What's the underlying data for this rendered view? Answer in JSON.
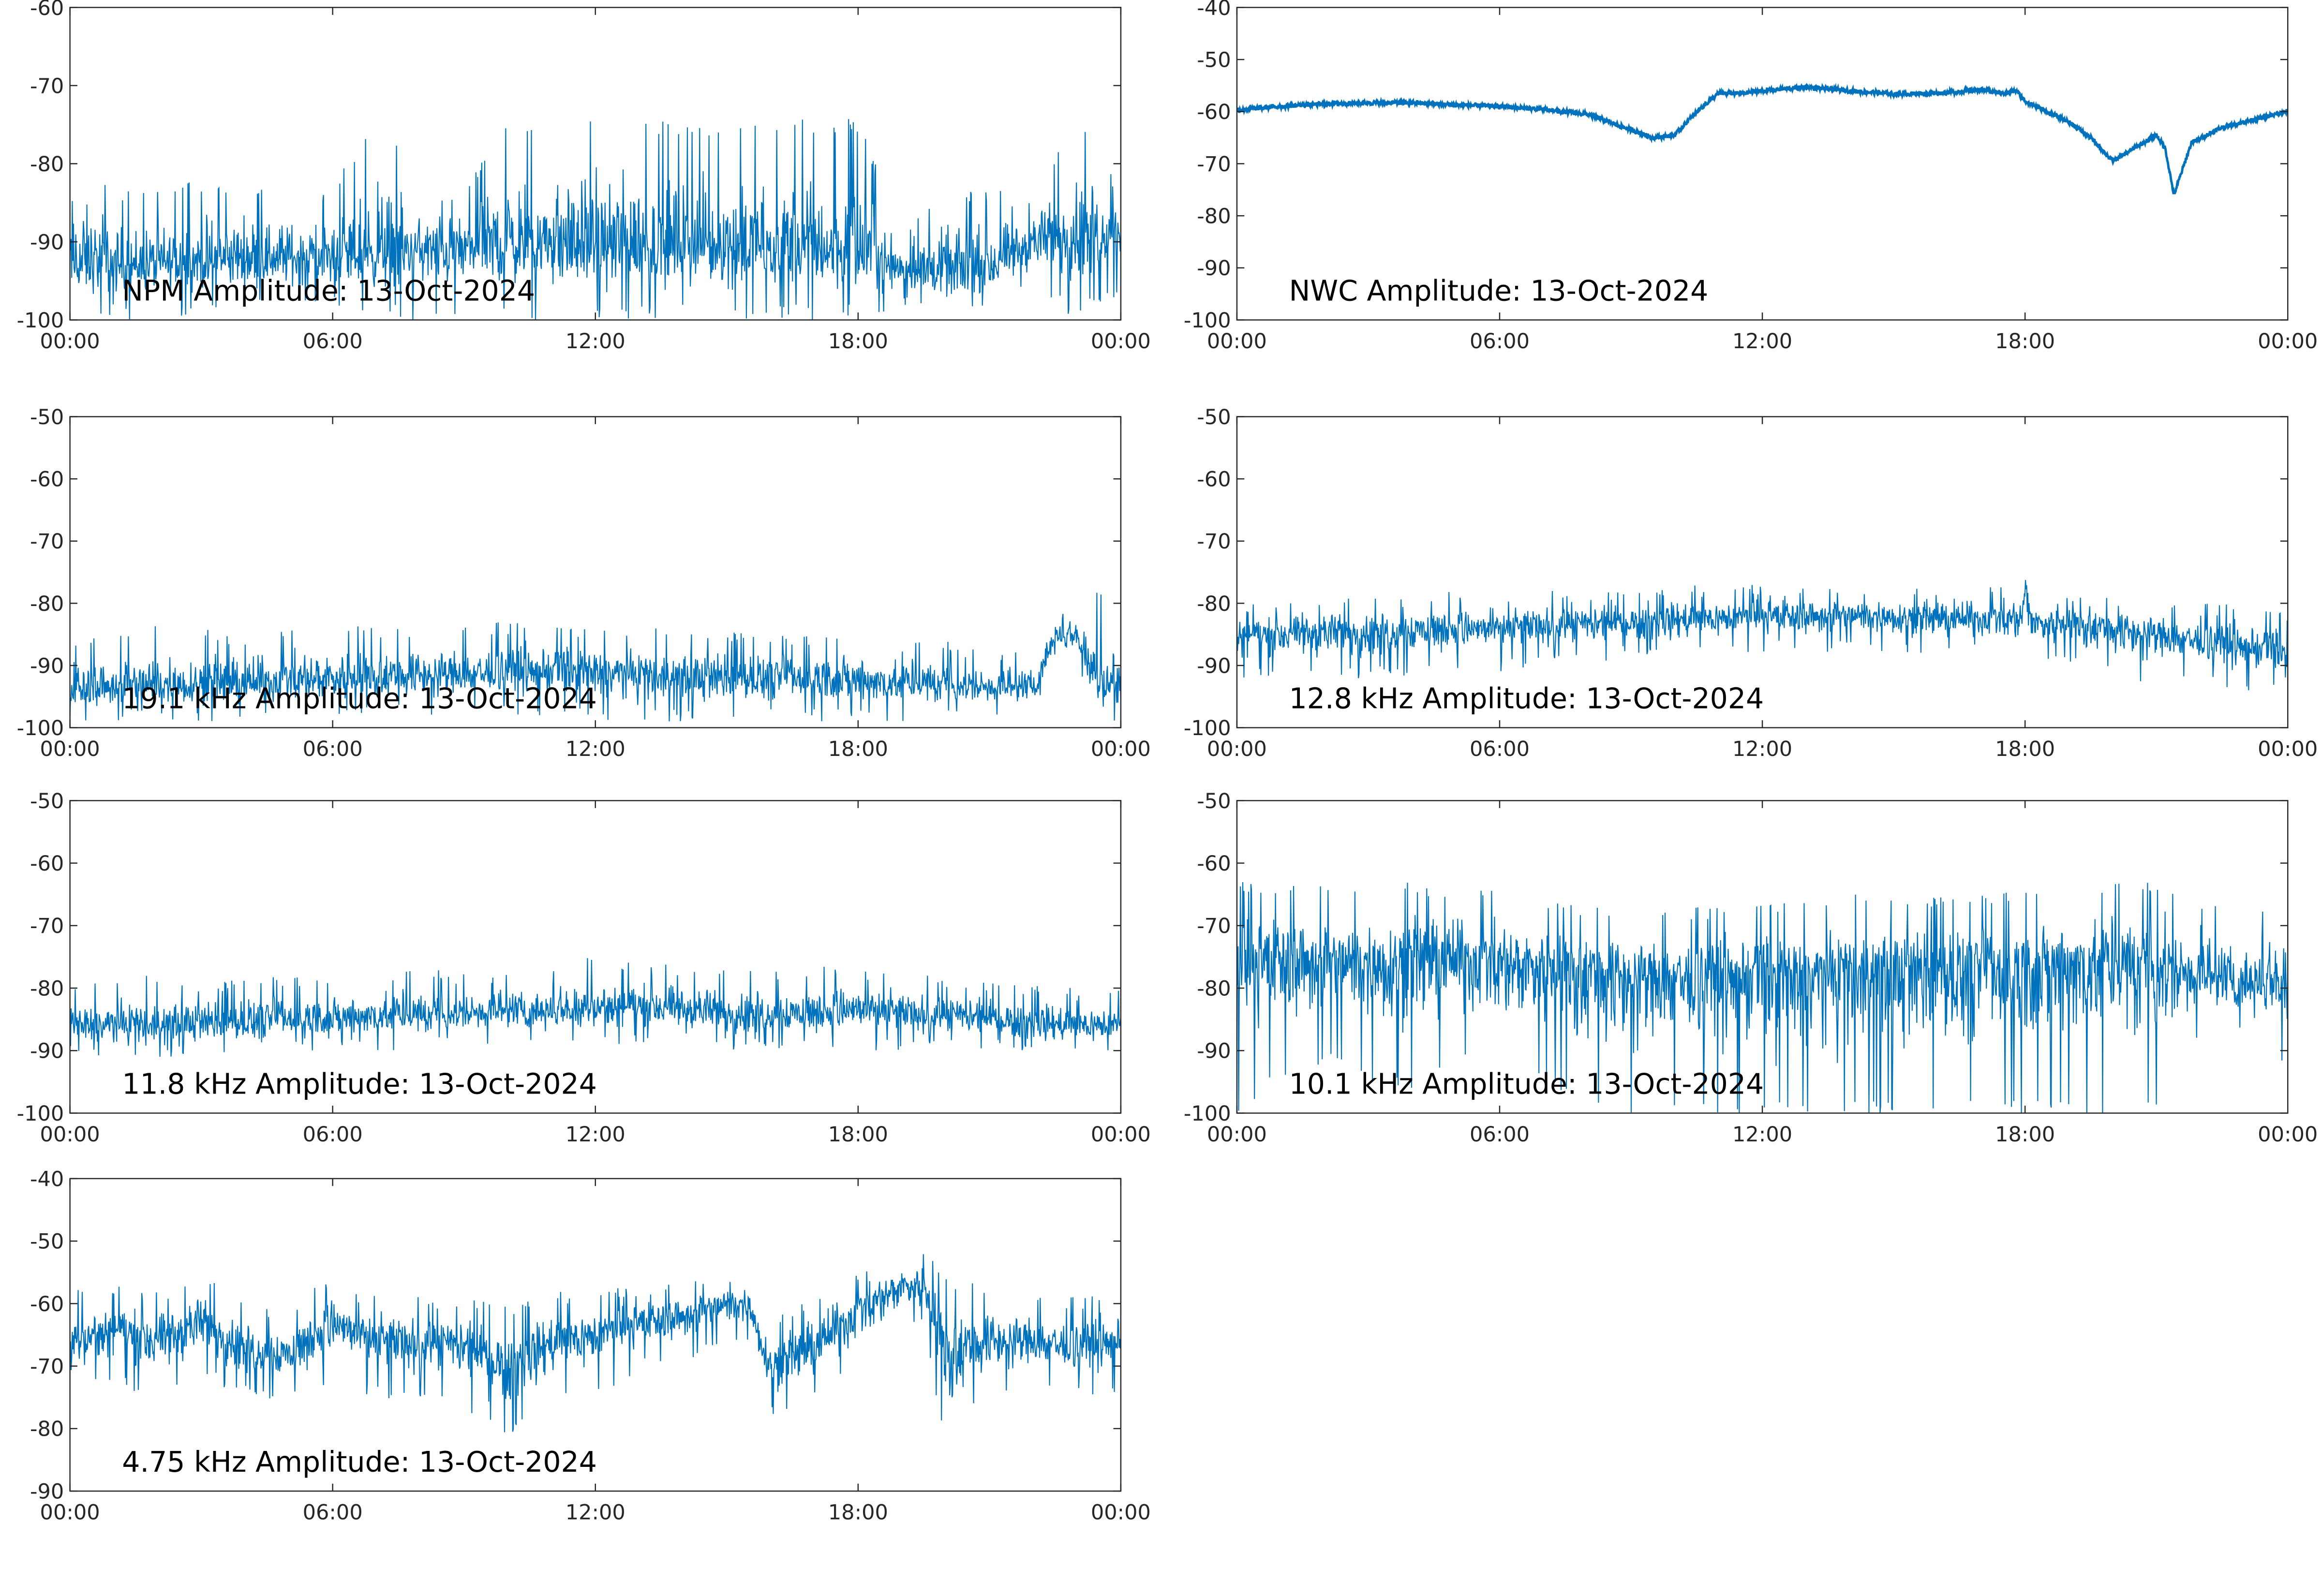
{
  "line_color": "#0072BD",
  "chart_data": [
    {
      "type": "line",
      "annotation": "NPM Amplitude: 13-Oct-2024",
      "ylim": [
        -100,
        -60
      ],
      "yticks": [
        "-100",
        "-90",
        "-80",
        "-70",
        "-60"
      ],
      "xticks": [
        "00:00",
        "06:00",
        "12:00",
        "18:00",
        "00:00"
      ],
      "xlim_hours": [
        0,
        24
      ],
      "grid": false,
      "x": [
        0,
        1,
        2,
        3,
        4,
        5,
        6,
        7,
        8,
        9,
        10,
        11,
        12,
        13,
        14,
        15,
        16,
        17,
        18,
        19,
        20,
        21,
        22,
        23,
        24
      ],
      "mean": [
        -93,
        -93,
        -93,
        -92.5,
        -92,
        -92,
        -92,
        -91.5,
        -91,
        -91,
        -90.5,
        -90.5,
        -90.5,
        -90.5,
        -90.5,
        -90.5,
        -91,
        -91,
        -91.5,
        -93,
        -94,
        -93.5,
        -90,
        -89,
        -88
      ],
      "low": [
        -100,
        -100,
        -100,
        -100,
        -99,
        -99,
        -99,
        -100,
        -100,
        -100,
        -100,
        -100,
        -100,
        -100,
        -100,
        -100,
        -100,
        -100,
        -100,
        -99,
        -100,
        -99,
        -97,
        -100,
        -97
      ],
      "high": [
        -75,
        -83,
        -83,
        -82,
        -82,
        -83,
        -83,
        -73,
        -83,
        -83,
        -74,
        -74,
        -74,
        -74,
        -75,
        -75,
        -75,
        -74,
        -74,
        -89,
        -83,
        -83,
        -84,
        -74,
        -83
      ]
    },
    {
      "type": "line",
      "annotation": "NWC Amplitude: 13-Oct-2024",
      "ylim": [
        -100,
        -40
      ],
      "yticks": [
        "-100",
        "-90",
        "-80",
        "-70",
        "-60",
        "-50",
        "-40"
      ],
      "xticks": [
        "00:00",
        "06:00",
        "12:00",
        "18:00",
        "00:00"
      ],
      "xlim_hours": [
        0,
        24
      ],
      "grid": false,
      "x": [
        0,
        1,
        2,
        3,
        4,
        5,
        6,
        7,
        8,
        9,
        9.5,
        10,
        10.5,
        11,
        11.5,
        12,
        13,
        14,
        15,
        16,
        17,
        17.5,
        17.8,
        18,
        19,
        19.5,
        20,
        20.5,
        21,
        21.2,
        21.4,
        21.8,
        22.5,
        23,
        24
      ],
      "mean": [
        -59.7,
        -59,
        -58.5,
        -58.3,
        -58.3,
        -58.7,
        -59,
        -59.6,
        -60.5,
        -63.5,
        -65,
        -64.5,
        -60,
        -56.5,
        -56.5,
        -56,
        -55.3,
        -56,
        -56.6,
        -56.5,
        -55.8,
        -56.5,
        -56,
        -58,
        -62,
        -65,
        -69.5,
        -67,
        -64.5,
        -67,
        -76,
        -66,
        -63,
        -62,
        -60
      ],
      "noise": 0.4
    },
    {
      "type": "line",
      "annotation": "19.1 kHz Amplitude: 13-Oct-2024",
      "ylim": [
        -100,
        -50
      ],
      "yticks": [
        "-100",
        "-90",
        "-80",
        "-70",
        "-60",
        "-50"
      ],
      "xticks": [
        "00:00",
        "06:00",
        "12:00",
        "18:00",
        "00:00"
      ],
      "xlim_hours": [
        0,
        24
      ],
      "grid": false,
      "x": [
        0,
        1,
        2,
        3,
        4,
        5,
        6,
        7,
        8,
        9,
        10,
        11,
        12,
        13,
        14,
        15,
        16,
        17,
        18,
        19,
        20,
        21,
        22,
        22.5,
        23,
        23.5,
        24
      ],
      "mean": [
        -94,
        -93.5,
        -93.5,
        -93,
        -93,
        -92.5,
        -92,
        -92,
        -91.5,
        -91.5,
        -91,
        -91,
        -91,
        -91.5,
        -92,
        -92,
        -92,
        -92,
        -92.5,
        -93,
        -93,
        -93.5,
        -93.5,
        -85,
        -85,
        -93,
        -93
      ],
      "low": [
        -100,
        -99,
        -99,
        -99,
        -99,
        -99,
        -99,
        -98,
        -98,
        -98,
        -98,
        -98,
        -99,
        -99,
        -99,
        -99,
        -99,
        -99,
        -99,
        -99,
        -99,
        -98,
        -98,
        -90,
        -90,
        -100,
        -100
      ],
      "high": [
        -85,
        -85,
        -82,
        -84,
        -85,
        -84,
        -83,
        -84,
        -84,
        -83,
        -83,
        -83,
        -84,
        -84,
        -84,
        -84,
        -85,
        -85,
        -84,
        -86,
        -86,
        -87,
        -87,
        -80,
        -81,
        -78,
        -80
      ]
    },
    {
      "type": "line",
      "annotation": "12.8 kHz Amplitude: 13-Oct-2024",
      "ylim": [
        -100,
        -50
      ],
      "yticks": [
        "-100",
        "-90",
        "-80",
        "-70",
        "-60",
        "-50"
      ],
      "xticks": [
        "00:00",
        "06:00",
        "12:00",
        "18:00",
        "00:00"
      ],
      "xlim_hours": [
        0,
        24
      ],
      "grid": false,
      "x": [
        0,
        1,
        2,
        3,
        4,
        5,
        6,
        7,
        8,
        9,
        10,
        11,
        12,
        13,
        14,
        15,
        16,
        17,
        17.9,
        18,
        18.2,
        19,
        20,
        21,
        22,
        23,
        24
      ],
      "mean": [
        -85,
        -85,
        -84.5,
        -84.5,
        -84,
        -84,
        -84,
        -83.5,
        -83.5,
        -83,
        -82.5,
        -82.5,
        -82,
        -82,
        -82,
        -82,
        -82.5,
        -82.5,
        -82.5,
        -78,
        -83,
        -83,
        -84,
        -85,
        -86,
        -87,
        -88
      ],
      "low": [
        -92,
        -92,
        -93,
        -92,
        -92,
        -91,
        -91,
        -90,
        -90,
        -89,
        -89,
        -88,
        -88,
        -88,
        -88,
        -88,
        -88,
        -88,
        -89,
        -88,
        -90,
        -90,
        -92,
        -93,
        -93,
        -94,
        -94
      ],
      "high": [
        -80,
        -80,
        -79,
        -79,
        -79,
        -78,
        -79,
        -78,
        -78,
        -78,
        -77,
        -77,
        -77,
        -77,
        -77,
        -77,
        -78,
        -77,
        -77,
        -72,
        -79,
        -79,
        -79,
        -79,
        -80,
        -80,
        -81
      ]
    },
    {
      "type": "line",
      "annotation": "11.8 kHz Amplitude: 13-Oct-2024",
      "ylim": [
        -100,
        -50
      ],
      "yticks": [
        "-100",
        "-90",
        "-80",
        "-70",
        "-60",
        "-50"
      ],
      "xticks": [
        "00:00",
        "06:00",
        "12:00",
        "18:00",
        "00:00"
      ],
      "xlim_hours": [
        0,
        24
      ],
      "grid": false,
      "x": [
        0,
        1,
        2,
        3,
        4,
        5,
        6,
        7,
        8,
        9,
        10,
        11,
        12,
        13,
        14,
        15,
        16,
        17,
        18,
        19,
        20,
        21,
        22,
        23,
        24
      ],
      "mean": [
        -86,
        -86,
        -86,
        -85.5,
        -85.5,
        -85,
        -85,
        -84.5,
        -84.5,
        -84,
        -83.5,
        -83.5,
        -83,
        -83,
        -83.5,
        -84,
        -84,
        -84,
        -83.5,
        -84,
        -84.5,
        -85,
        -85.5,
        -86,
        -86
      ],
      "low": [
        -91,
        -91,
        -91,
        -91,
        -91,
        -90,
        -90,
        -90,
        -90,
        -89,
        -89,
        -89,
        -89,
        -89,
        -89,
        -90,
        -90,
        -90,
        -90,
        -90,
        -90,
        -90,
        -91,
        -91,
        -91
      ],
      "high": [
        -80,
        -78,
        -78,
        -79,
        -78,
        -78,
        -78,
        -77,
        -77,
        -77,
        -77,
        -76,
        -75,
        -76,
        -76,
        -77,
        -77,
        -77,
        -75,
        -78,
        -78,
        -79,
        -79,
        -80,
        -80
      ]
    },
    {
      "type": "line",
      "annotation": "10.1 kHz Amplitude: 13-Oct-2024",
      "ylim": [
        -100,
        -50
      ],
      "yticks": [
        "-100",
        "-90",
        "-80",
        "-70",
        "-60",
        "-50"
      ],
      "xticks": [
        "00:00",
        "06:00",
        "12:00",
        "18:00",
        "00:00"
      ],
      "xlim_hours": [
        0,
        24
      ],
      "grid": false,
      "x": [
        0,
        1,
        2,
        3,
        4,
        5,
        6,
        7,
        8,
        9,
        10,
        11,
        12,
        13,
        14,
        15,
        16,
        17,
        18,
        19,
        20,
        21,
        22,
        23,
        24
      ],
      "mean": [
        -76,
        -75,
        -76,
        -76,
        -75,
        -75,
        -76,
        -76,
        -77,
        -78,
        -78,
        -78,
        -78,
        -78,
        -77,
        -77,
        -77,
        -77,
        -77,
        -76,
        -76,
        -76,
        -78,
        -79,
        -78
      ],
      "low": [
        -100,
        -95,
        -92,
        -95,
        -96,
        -92,
        -92,
        -95,
        -100,
        -100,
        -100,
        -100,
        -100,
        -100,
        -100,
        -100,
        -100,
        -100,
        -100,
        -100,
        -100,
        -100,
        -87,
        -87,
        -93
      ],
      "high": [
        -63,
        -63,
        -63,
        -63,
        -63,
        -64,
        -64,
        -66,
        -67,
        -67,
        -67,
        -67,
        -66,
        -66,
        -65,
        -65,
        -65,
        -65,
        -64,
        -63,
        -63,
        -63,
        -66,
        -66,
        -67
      ]
    },
    {
      "type": "line",
      "annotation": "4.75 kHz Amplitude: 13-Oct-2024",
      "ylim": [
        -90,
        -40
      ],
      "yticks": [
        "-90",
        "-80",
        "-70",
        "-60",
        "-50",
        "-40"
      ],
      "xticks": [
        "00:00",
        "06:00",
        "12:00",
        "18:00",
        "00:00"
      ],
      "xlim_hours": [
        0,
        24
      ],
      "grid": false,
      "x": [
        0,
        1,
        2,
        3,
        4,
        5,
        6,
        7,
        8,
        9,
        10,
        11,
        12,
        13,
        14,
        15,
        15.5,
        16,
        17,
        18,
        19,
        19.5,
        20,
        21,
        22,
        23,
        24
      ],
      "mean": [
        -66,
        -64,
        -66,
        -63,
        -67,
        -68,
        -63,
        -66,
        -66,
        -67,
        -70,
        -66,
        -65,
        -63,
        -62,
        -60,
        -60,
        -70,
        -67,
        -61,
        -57,
        -57,
        -68,
        -66,
        -66,
        -67,
        -66
      ],
      "low": [
        -75,
        -72,
        -77,
        -72,
        -75,
        -76,
        -73,
        -75,
        -76,
        -77,
        -82,
        -76,
        -75,
        -71,
        -69,
        -68,
        -66,
        -78,
        -75,
        -71,
        -64,
        -64,
        -84,
        -74,
        -74,
        -75,
        -74
      ],
      "high": [
        -58,
        -57,
        -58,
        -55,
        -60,
        -61,
        -55,
        -58,
        -59,
        -59,
        -60,
        -58,
        -58,
        -57,
        -56,
        -55,
        -55,
        -63,
        -58,
        -55,
        -52,
        -51,
        -56,
        -57,
        -58,
        -59,
        -58
      ]
    }
  ]
}
